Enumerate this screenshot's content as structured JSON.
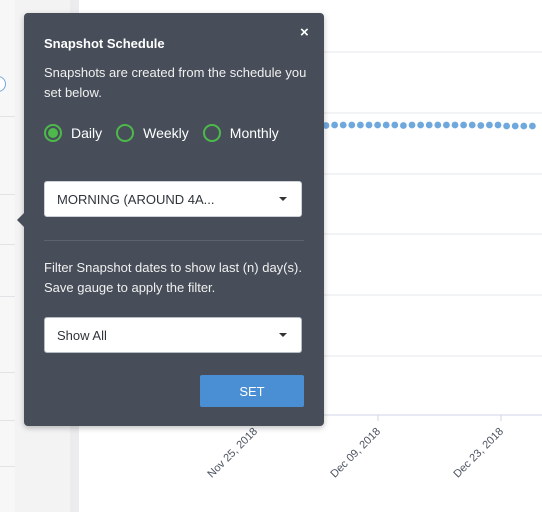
{
  "popover": {
    "title": "Snapshot Schedule",
    "close_glyph": "×",
    "description": "Snapshots are created from the schedule you set below.",
    "frequency": {
      "options": [
        {
          "label": "Daily",
          "checked": true
        },
        {
          "label": "Weekly",
          "checked": false
        },
        {
          "label": "Monthly",
          "checked": false
        }
      ]
    },
    "time_select": {
      "value": "MORNING (AROUND 4A..."
    },
    "filter_description": "Filter Snapshot dates to show last (n) day(s). Save gauge to apply the filter.",
    "filter_select": {
      "value": "Show All"
    },
    "set_label": "SET"
  },
  "chart_data": {
    "type": "line",
    "x_tick_labels": [
      "Nov 25, 2018",
      "Dec 09, 2018",
      "Dec 23, 2018"
    ],
    "series": [
      {
        "color": "#6fa8dc",
        "marker": "dot"
      }
    ]
  },
  "colors": {
    "popover_bg": "#474e59",
    "radio_accent": "#4cb94a",
    "button_primary": "#4a8fd4",
    "series_line": "#6fa8dc"
  }
}
